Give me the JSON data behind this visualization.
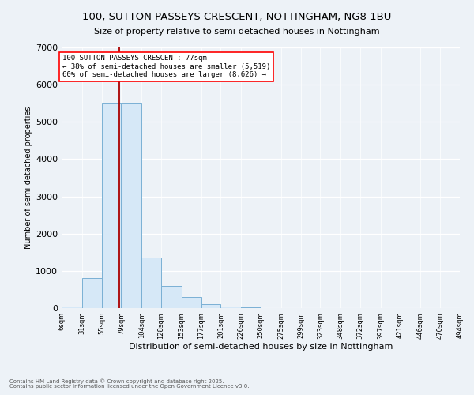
{
  "title": "100, SUTTON PASSEYS CRESCENT, NOTTINGHAM, NG8 1BU",
  "subtitle": "Size of property relative to semi-detached houses in Nottingham",
  "xlabel": "Distribution of semi-detached houses by size in Nottingham",
  "ylabel": "Number of semi-detached properties",
  "bar_color": "#d6e8f7",
  "bar_edge_color": "#7ab0d4",
  "property_line_color": "#aa0000",
  "property_size": 77,
  "property_label": "100 SUTTON PASSEYS CRESCENT: 77sqm",
  "smaller_pct": 38,
  "smaller_count": 5519,
  "larger_pct": 60,
  "larger_count": 8626,
  "bin_labels": [
    "6sqm",
    "31sqm",
    "55sqm",
    "79sqm",
    "104sqm",
    "128sqm",
    "153sqm",
    "177sqm",
    "201sqm",
    "226sqm",
    "250sqm",
    "275sqm",
    "299sqm",
    "323sqm",
    "348sqm",
    "372sqm",
    "397sqm",
    "421sqm",
    "446sqm",
    "470sqm",
    "494sqm"
  ],
  "bin_edges": [
    6,
    31,
    55,
    79,
    104,
    128,
    153,
    177,
    201,
    226,
    250,
    275,
    299,
    323,
    348,
    372,
    397,
    421,
    446,
    470,
    494
  ],
  "bar_heights": [
    50,
    800,
    5500,
    5500,
    1350,
    590,
    290,
    100,
    50,
    20,
    10,
    5,
    3,
    2,
    1,
    1,
    0,
    0,
    0,
    0
  ],
  "ylim": [
    0,
    7000
  ],
  "yticks": [
    0,
    1000,
    2000,
    3000,
    4000,
    5000,
    6000,
    7000
  ],
  "footer_line1": "Contains HM Land Registry data © Crown copyright and database right 2025.",
  "footer_line2": "Contains public sector information licensed under the Open Government Licence v3.0.",
  "background_color": "#edf2f7"
}
